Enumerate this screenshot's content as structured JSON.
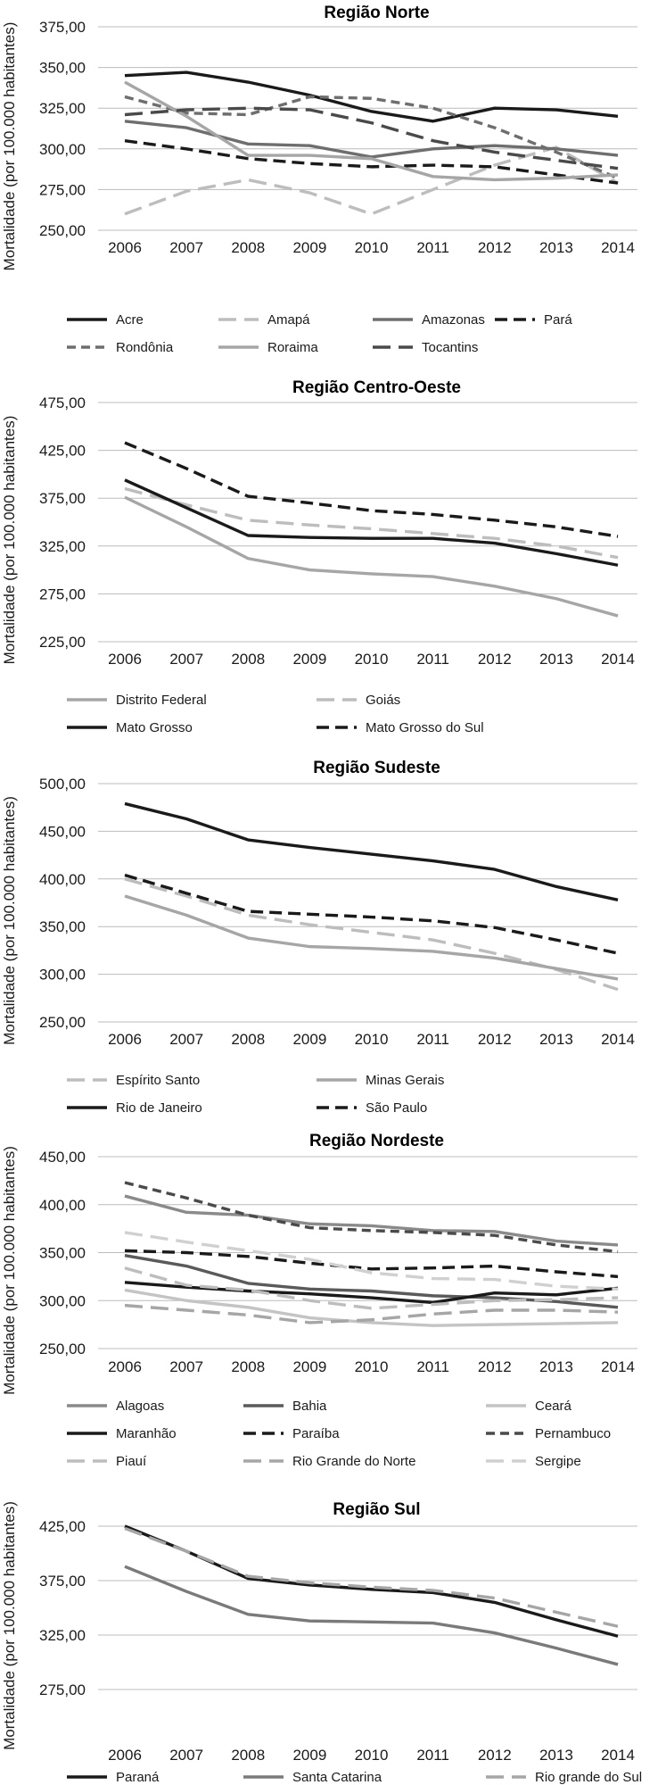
{
  "chart_data": [
    {
      "type": "line",
      "title": "Região Norte",
      "ylabel": "Mortalidade (por 100.000 habitantes)",
      "xlabel": "",
      "x": [
        "2006",
        "2007",
        "2008",
        "2009",
        "2010",
        "2011",
        "2012",
        "2013",
        "2014"
      ],
      "ylim": [
        250,
        375
      ],
      "yticks": [
        "250,00",
        "275,00",
        "300,00",
        "325,00",
        "350,00",
        "375,00"
      ],
      "grid": true,
      "legend_position": "bottom",
      "series": [
        {
          "name": "Acre",
          "color": "#1a1a1a",
          "dash": "solid",
          "values": [
            345,
            347,
            341,
            333,
            323,
            317,
            325,
            324,
            320
          ]
        },
        {
          "name": "Amapá",
          "color": "#bdbdbd",
          "dash": "longdash",
          "values": [
            260,
            274,
            281,
            273,
            260,
            275,
            290,
            301,
            279
          ]
        },
        {
          "name": "Amazonas",
          "color": "#6e6e6e",
          "dash": "solid",
          "values": [
            317,
            313,
            303,
            302,
            295,
            300,
            302,
            300,
            296
          ]
        },
        {
          "name": "Pará",
          "color": "#1a1a1a",
          "dash": "dash",
          "values": [
            305,
            300,
            294,
            291,
            289,
            290,
            289,
            284,
            279
          ]
        },
        {
          "name": "Rondônia",
          "color": "#6e6e6e",
          "dash": "shortdash",
          "values": [
            332,
            322,
            321,
            332,
            331,
            325,
            313,
            298,
            282
          ]
        },
        {
          "name": "Roraima",
          "color": "#a6a6a6",
          "dash": "solid",
          "values": [
            341,
            320,
            296,
            296,
            294,
            283,
            281,
            282,
            284
          ]
        },
        {
          "name": "Tocantins",
          "color": "#4a4a4a",
          "dash": "longdash",
          "values": [
            321,
            324,
            325,
            324,
            316,
            305,
            298,
            293,
            288
          ]
        }
      ]
    },
    {
      "type": "line",
      "title": "Região Centro-Oeste",
      "ylabel": "Mortalidade (por 100.000 habitantes)",
      "xlabel": "",
      "x": [
        "2006",
        "2007",
        "2008",
        "2009",
        "2010",
        "2011",
        "2012",
        "2013",
        "2014"
      ],
      "ylim": [
        225,
        475
      ],
      "yticks": [
        "225,00",
        "275,00",
        "325,00",
        "375,00",
        "425,00",
        "475,00"
      ],
      "grid": true,
      "legend_position": "bottom",
      "series": [
        {
          "name": "Distrito Federal",
          "color": "#a6a6a6",
          "dash": "solid",
          "values": [
            376,
            345,
            312,
            300,
            296,
            293,
            283,
            270,
            252
          ]
        },
        {
          "name": "Goiás",
          "color": "#bdbdbd",
          "dash": "longdash",
          "values": [
            385,
            368,
            352,
            347,
            343,
            338,
            333,
            325,
            313
          ]
        },
        {
          "name": "Mato Grosso",
          "color": "#1a1a1a",
          "dash": "solid",
          "values": [
            394,
            365,
            336,
            334,
            333,
            333,
            328,
            317,
            305
          ]
        },
        {
          "name": "Mato Grosso do Sul",
          "color": "#1a1a1a",
          "dash": "dash",
          "values": [
            433,
            406,
            377,
            370,
            362,
            358,
            352,
            345,
            335
          ]
        }
      ]
    },
    {
      "type": "line",
      "title": "Região Sudeste",
      "ylabel": "Mortalidade (por 100.000 habitantes)",
      "xlabel": "",
      "x": [
        "2006",
        "2007",
        "2008",
        "2009",
        "2010",
        "2011",
        "2012",
        "2013",
        "2014"
      ],
      "ylim": [
        250,
        500
      ],
      "yticks": [
        "250,00",
        "300,00",
        "350,00",
        "400,00",
        "450,00",
        "500,00"
      ],
      "grid": true,
      "legend_position": "bottom",
      "series": [
        {
          "name": "Espírito Santo",
          "color": "#bdbdbd",
          "dash": "longdash",
          "values": [
            400,
            382,
            362,
            352,
            344,
            336,
            322,
            305,
            284
          ]
        },
        {
          "name": "Minas Gerais",
          "color": "#a6a6a6",
          "dash": "solid",
          "values": [
            382,
            362,
            338,
            329,
            327,
            324,
            317,
            306,
            295
          ]
        },
        {
          "name": "Rio de Janeiro",
          "color": "#1a1a1a",
          "dash": "solid",
          "values": [
            479,
            463,
            441,
            433,
            426,
            419,
            410,
            392,
            378
          ]
        },
        {
          "name": "São Paulo",
          "color": "#1a1a1a",
          "dash": "dash",
          "values": [
            404,
            385,
            366,
            363,
            360,
            356,
            349,
            336,
            322
          ]
        }
      ]
    },
    {
      "type": "line",
      "title": "Região Nordeste",
      "ylabel": "Mortalidade (por 100.000 habitantes)",
      "xlabel": "",
      "x": [
        "2006",
        "2007",
        "2008",
        "2009",
        "2010",
        "2011",
        "2012",
        "2013",
        "2014"
      ],
      "ylim": [
        250,
        450
      ],
      "yticks": [
        "250,00",
        "300,00",
        "350,00",
        "400,00",
        "450,00"
      ],
      "grid": true,
      "legend_position": "bottom",
      "series": [
        {
          "name": "Alagoas",
          "color": "#8a8a8a",
          "dash": "solid",
          "values": [
            409,
            392,
            389,
            380,
            378,
            373,
            372,
            362,
            358
          ]
        },
        {
          "name": "Bahia",
          "color": "#5a5a5a",
          "dash": "solid",
          "values": [
            347,
            336,
            318,
            312,
            310,
            305,
            303,
            299,
            293
          ]
        },
        {
          "name": "Ceará",
          "color": "#c4c4c4",
          "dash": "solid",
          "values": [
            311,
            300,
            293,
            282,
            277,
            274,
            275,
            276,
            277
          ]
        },
        {
          "name": "Maranhão",
          "color": "#1a1a1a",
          "dash": "solid",
          "values": [
            319,
            314,
            310,
            307,
            303,
            298,
            308,
            306,
            313
          ]
        },
        {
          "name": "Paraíba",
          "color": "#1a1a1a",
          "dash": "dash",
          "values": [
            352,
            350,
            346,
            339,
            333,
            334,
            336,
            330,
            325
          ]
        },
        {
          "name": "Pernambuco",
          "color": "#4a4a4a",
          "dash": "shortdash",
          "values": [
            423,
            407,
            389,
            376,
            373,
            371,
            368,
            358,
            351
          ]
        },
        {
          "name": "Piauí",
          "color": "#bdbdbd",
          "dash": "longdash",
          "values": [
            334,
            316,
            311,
            300,
            292,
            296,
            300,
            301,
            303
          ]
        },
        {
          "name": "Rio Grande do Norte",
          "color": "#a6a6a6",
          "dash": "longdash",
          "values": [
            295,
            290,
            285,
            277,
            280,
            286,
            290,
            290,
            288
          ]
        },
        {
          "name": "Sergipe",
          "color": "#d0d0d0",
          "dash": "longdash",
          "values": [
            371,
            361,
            352,
            343,
            329,
            323,
            322,
            315,
            312
          ]
        }
      ]
    },
    {
      "type": "line",
      "title": "Região Sul",
      "ylabel": "Mortalidade (por 100.000 habitantes)",
      "xlabel": "",
      "x": [
        "2006",
        "2007",
        "2008",
        "2009",
        "2010",
        "2011",
        "2012",
        "2013",
        "2014"
      ],
      "ylim": [
        275,
        425
      ],
      "yticks": [
        "275,00",
        "325,00",
        "375,00",
        "425,00"
      ],
      "grid": true,
      "legend_position": "bottom",
      "series": [
        {
          "name": "Paraná",
          "color": "#1a1a1a",
          "dash": "solid",
          "values": [
            425,
            402,
            377,
            371,
            367,
            364,
            355,
            339,
            324
          ]
        },
        {
          "name": "Santa Catarina",
          "color": "#7a7a7a",
          "dash": "solid",
          "values": [
            388,
            365,
            344,
            338,
            337,
            336,
            327,
            313,
            298
          ]
        },
        {
          "name": "Rio grande do Sul",
          "color": "#a6a6a6",
          "dash": "longdash",
          "values": [
            423,
            402,
            379,
            373,
            369,
            366,
            359,
            346,
            333
          ]
        }
      ]
    }
  ]
}
